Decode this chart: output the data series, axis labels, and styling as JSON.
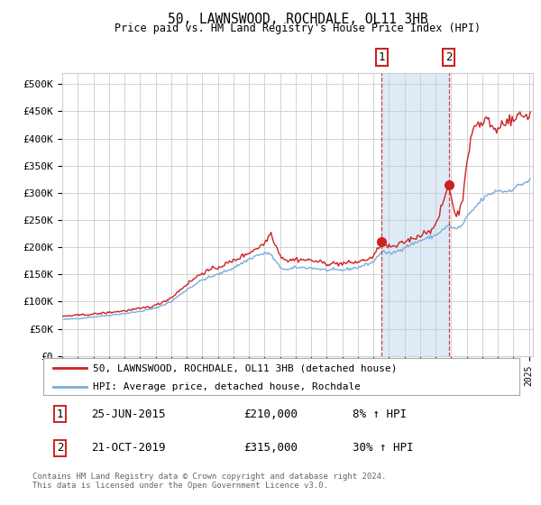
{
  "title": "50, LAWNSWOOD, ROCHDALE, OL11 3HB",
  "subtitle": "Price paid vs. HM Land Registry's House Price Index (HPI)",
  "legend_line1": "50, LAWNSWOOD, ROCHDALE, OL11 3HB (detached house)",
  "legend_line2": "HPI: Average price, detached house, Rochdale",
  "annotation1_year": 2015.542,
  "annotation1_price": 210000,
  "annotation2_year": 2019.833,
  "annotation2_price": 315000,
  "hpi_color": "#7aaddb",
  "price_color": "#cc2222",
  "dot_color": "#cc2222",
  "background_color": "#ffffff",
  "plot_bg_color": "#ffffff",
  "shade_color": "#deeaf5",
  "grid_color": "#cccccc",
  "footer": "Contains HM Land Registry data © Crown copyright and database right 2024.\nThis data is licensed under the Open Government Licence v3.0.",
  "ylim": [
    0,
    520000
  ],
  "yticks": [
    0,
    50000,
    100000,
    150000,
    200000,
    250000,
    300000,
    350000,
    400000,
    450000,
    500000
  ],
  "xstart": 1995,
  "xend": 2025
}
